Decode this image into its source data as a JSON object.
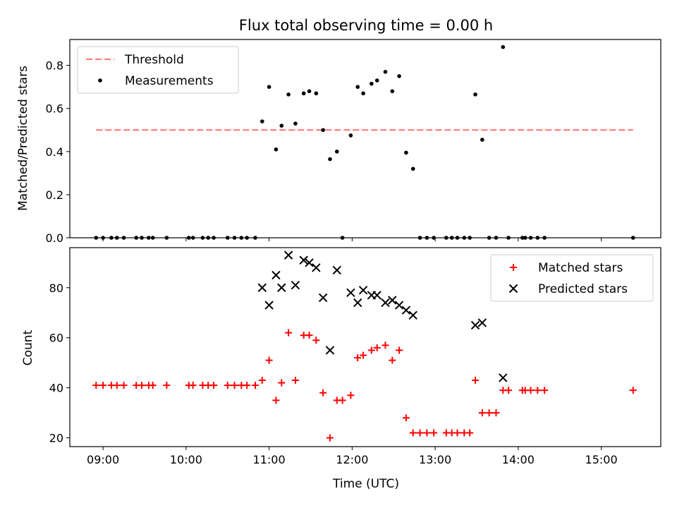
{
  "chart_data": [
    {
      "type": "scatter",
      "title": "Flux total observing time = 0.00 h",
      "ylabel": "Matched/Predicted stars",
      "xlabel": "",
      "xlim": [
        "08:36",
        "15:43"
      ],
      "ylim": [
        0,
        0.92
      ],
      "yticks": [
        0,
        0.2,
        0.4,
        0.6,
        0.8
      ],
      "ytick_labels": [
        "0.0",
        "0.2",
        "0.4",
        "0.6",
        "0.8"
      ],
      "grid": false,
      "legend": "top-left",
      "series": [
        {
          "name": "Threshold",
          "kind": "line",
          "style": "dashed",
          "color": "#ff7f7f",
          "points": [
            [
              "08:55",
              0.5
            ],
            [
              "15:23",
              0.5
            ]
          ]
        },
        {
          "name": "Measurements",
          "kind": "scatter",
          "marker": "dot",
          "color": "#000000",
          "points": [
            [
              "08:55",
              0.0
            ],
            [
              "09:00",
              0.0
            ],
            [
              "09:06",
              0.0
            ],
            [
              "09:10",
              0.0
            ],
            [
              "09:15",
              0.0
            ],
            [
              "09:24",
              0.0
            ],
            [
              "09:28",
              0.0
            ],
            [
              "09:33",
              0.0
            ],
            [
              "09:36",
              0.0
            ],
            [
              "09:46",
              0.0
            ],
            [
              "10:02",
              0.0
            ],
            [
              "10:05",
              0.0
            ],
            [
              "10:12",
              0.0
            ],
            [
              "10:16",
              0.0
            ],
            [
              "10:20",
              0.0
            ],
            [
              "10:30",
              0.0
            ],
            [
              "10:35",
              0.0
            ],
            [
              "10:40",
              0.0
            ],
            [
              "10:44",
              0.0
            ],
            [
              "10:50",
              0.0
            ],
            [
              "10:55",
              0.54
            ],
            [
              "11:00",
              0.7
            ],
            [
              "11:05",
              0.41
            ],
            [
              "11:09",
              0.52
            ],
            [
              "11:14",
              0.665
            ],
            [
              "11:19",
              0.53
            ],
            [
              "11:25",
              0.67
            ],
            [
              "11:29",
              0.68
            ],
            [
              "11:34",
              0.67
            ],
            [
              "11:39",
              0.5
            ],
            [
              "11:44",
              0.365
            ],
            [
              "11:49",
              0.4
            ],
            [
              "11:53",
              0.0
            ],
            [
              "11:59",
              0.475
            ],
            [
              "12:04",
              0.7
            ],
            [
              "12:08",
              0.67
            ],
            [
              "12:14",
              0.715
            ],
            [
              "12:18",
              0.73
            ],
            [
              "12:24",
              0.77
            ],
            [
              "12:29",
              0.68
            ],
            [
              "12:34",
              0.75
            ],
            [
              "12:39",
              0.395
            ],
            [
              "12:44",
              0.32
            ],
            [
              "12:49",
              0.0
            ],
            [
              "12:54",
              0.0
            ],
            [
              "12:59",
              0.0
            ],
            [
              "13:08",
              0.0
            ],
            [
              "13:12",
              0.0
            ],
            [
              "13:16",
              0.0
            ],
            [
              "13:21",
              0.0
            ],
            [
              "13:25",
              0.0
            ],
            [
              "13:29",
              0.665
            ],
            [
              "13:34",
              0.455
            ],
            [
              "13:39",
              0.0
            ],
            [
              "13:44",
              0.0
            ],
            [
              "13:49",
              0.885
            ],
            [
              "13:53",
              0.0
            ],
            [
              "14:03",
              0.0
            ],
            [
              "14:05",
              0.0
            ],
            [
              "14:09",
              0.0
            ],
            [
              "14:14",
              0.0
            ],
            [
              "14:19",
              0.0
            ],
            [
              "15:23",
              0.0
            ]
          ]
        }
      ]
    },
    {
      "type": "scatter",
      "title": "",
      "ylabel": "Count",
      "xlabel": "Time (UTC)",
      "xlim": [
        "08:36",
        "15:43"
      ],
      "ylim": [
        16.5,
        96
      ],
      "yticks": [
        20,
        40,
        60,
        80
      ],
      "ytick_labels": [
        "20",
        "40",
        "60",
        "80"
      ],
      "xticks": [
        "09:00",
        "10:00",
        "11:00",
        "12:00",
        "13:00",
        "14:00",
        "15:00"
      ],
      "xtick_labels": [
        "09:00",
        "10:00",
        "11:00",
        "12:00",
        "13:00",
        "14:00",
        "15:00"
      ],
      "grid": false,
      "legend": "top-right",
      "series": [
        {
          "name": "Matched stars",
          "kind": "scatter",
          "marker": "plus",
          "color": "#ff0000",
          "points": [
            [
              "08:55",
              41
            ],
            [
              "09:00",
              41
            ],
            [
              "09:06",
              41
            ],
            [
              "09:10",
              41
            ],
            [
              "09:15",
              41
            ],
            [
              "09:24",
              41
            ],
            [
              "09:28",
              41
            ],
            [
              "09:33",
              41
            ],
            [
              "09:36",
              41
            ],
            [
              "09:46",
              41
            ],
            [
              "10:02",
              41
            ],
            [
              "10:05",
              41
            ],
            [
              "10:12",
              41
            ],
            [
              "10:16",
              41
            ],
            [
              "10:20",
              41
            ],
            [
              "10:30",
              41
            ],
            [
              "10:35",
              41
            ],
            [
              "10:40",
              41
            ],
            [
              "10:44",
              41
            ],
            [
              "10:50",
              41
            ],
            [
              "10:55",
              43
            ],
            [
              "11:00",
              51
            ],
            [
              "11:05",
              35
            ],
            [
              "11:09",
              42
            ],
            [
              "11:14",
              62
            ],
            [
              "11:19",
              43
            ],
            [
              "11:25",
              61
            ],
            [
              "11:29",
              61
            ],
            [
              "11:34",
              59
            ],
            [
              "11:39",
              38
            ],
            [
              "11:44",
              20
            ],
            [
              "11:49",
              35
            ],
            [
              "11:53",
              35
            ],
            [
              "11:59",
              37
            ],
            [
              "12:04",
              52
            ],
            [
              "12:08",
              53
            ],
            [
              "12:14",
              55
            ],
            [
              "12:18",
              56
            ],
            [
              "12:24",
              57
            ],
            [
              "12:29",
              51
            ],
            [
              "12:34",
              55
            ],
            [
              "12:39",
              28
            ],
            [
              "12:44",
              22
            ],
            [
              "12:49",
              22
            ],
            [
              "12:54",
              22
            ],
            [
              "12:59",
              22
            ],
            [
              "13:08",
              22
            ],
            [
              "13:12",
              22
            ],
            [
              "13:16",
              22
            ],
            [
              "13:21",
              22
            ],
            [
              "13:25",
              22
            ],
            [
              "13:29",
              43
            ],
            [
              "13:34",
              30
            ],
            [
              "13:39",
              30
            ],
            [
              "13:44",
              30
            ],
            [
              "13:49",
              39
            ],
            [
              "13:53",
              39
            ],
            [
              "14:03",
              39
            ],
            [
              "14:05",
              39
            ],
            [
              "14:09",
              39
            ],
            [
              "14:14",
              39
            ],
            [
              "14:19",
              39
            ],
            [
              "15:23",
              39
            ]
          ]
        },
        {
          "name": "Predicted stars",
          "kind": "scatter",
          "marker": "x",
          "color": "#000000",
          "points": [
            [
              "10:55",
              80
            ],
            [
              "11:00",
              73
            ],
            [
              "11:05",
              85
            ],
            [
              "11:09",
              80
            ],
            [
              "11:14",
              93
            ],
            [
              "11:19",
              81
            ],
            [
              "11:25",
              91
            ],
            [
              "11:29",
              90
            ],
            [
              "11:34",
              88
            ],
            [
              "11:39",
              76
            ],
            [
              "11:44",
              55
            ],
            [
              "11:49",
              87
            ],
            [
              "11:59",
              78
            ],
            [
              "12:04",
              74
            ],
            [
              "12:08",
              79
            ],
            [
              "12:14",
              77
            ],
            [
              "12:18",
              77
            ],
            [
              "12:24",
              74
            ],
            [
              "12:29",
              75
            ],
            [
              "12:34",
              73
            ],
            [
              "12:39",
              71
            ],
            [
              "12:44",
              69
            ],
            [
              "13:29",
              65
            ],
            [
              "13:34",
              66
            ],
            [
              "13:49",
              44
            ]
          ]
        }
      ]
    }
  ]
}
